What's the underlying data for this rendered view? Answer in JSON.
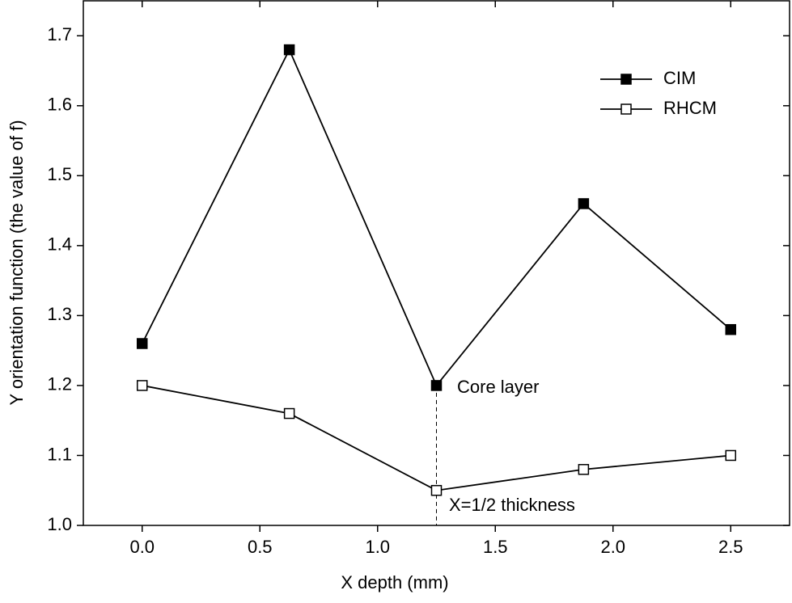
{
  "chart_data": {
    "type": "line",
    "x_label": "X  depth  (mm)",
    "y_label": "Y orientation function  (the value of f)",
    "x": [
      0,
      0.625,
      1.25,
      1.875,
      2.5
    ],
    "series": [
      {
        "name": "CIM",
        "color": "#000000",
        "marker": "filled-square",
        "values": [
          1.26,
          1.68,
          1.2,
          1.46,
          1.28
        ]
      },
      {
        "name": "RHCM",
        "color": "#000000",
        "marker": "open-square",
        "values": [
          1.2,
          1.16,
          1.05,
          1.08,
          1.1
        ]
      }
    ],
    "xlim": [
      -0.25,
      2.75
    ],
    "xticks": [
      {
        "value": 0,
        "label": "0.0"
      },
      0.5,
      {
        "value": 1,
        "label": "1.0"
      },
      1.5,
      {
        "value": 2,
        "label": "2.0"
      },
      2.5
    ],
    "ylim": [
      1.0,
      1.75
    ],
    "yticks": [
      {
        "value": 1,
        "label": "1.0"
      },
      1.1,
      1.2,
      1.3,
      1.4,
      1.5,
      1.6,
      1.7
    ],
    "annotations": [
      "Core layer",
      "X=1/2 thickness"
    ],
    "legend": "upper right",
    "grid": false
  }
}
